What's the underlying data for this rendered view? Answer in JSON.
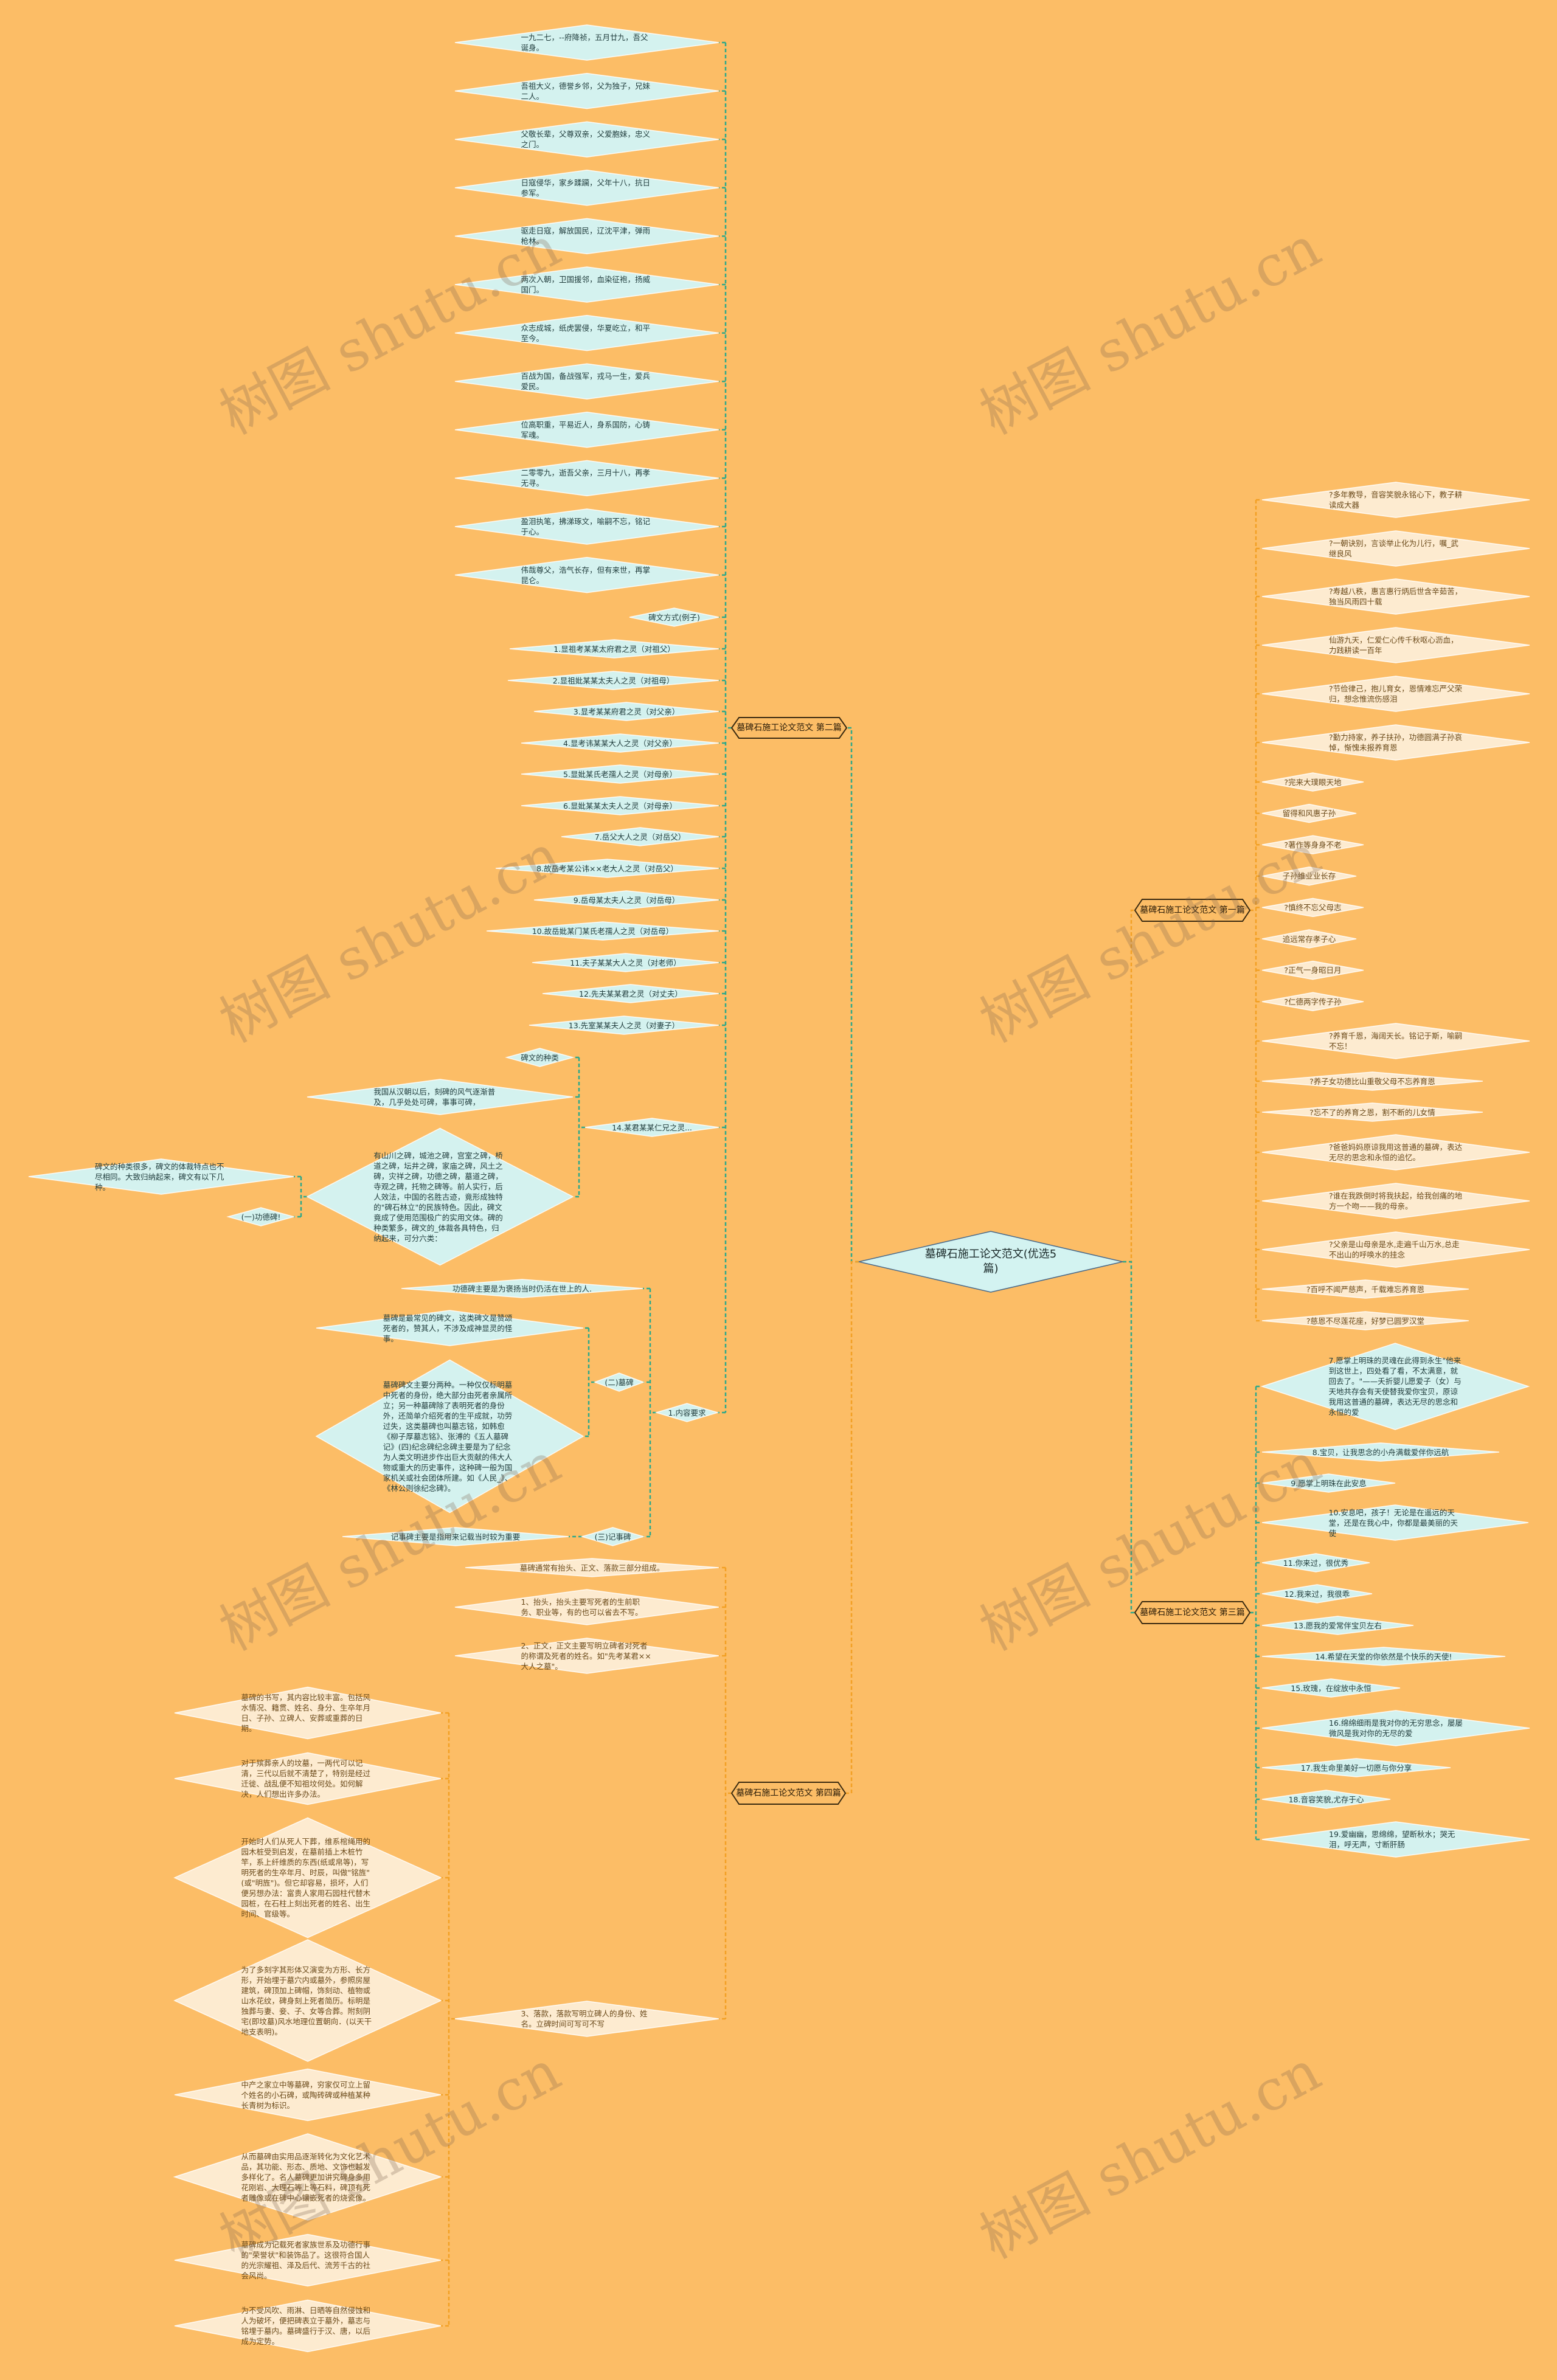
{
  "colors": {
    "background": "#fcbd66",
    "cyan_node": "#d4f2ef",
    "cream_node": "#fdebd0",
    "green_line": "#2fa88a",
    "orange_line": "#f2a024",
    "branch_border": "#3a2a10"
  },
  "watermark": "树图 shutu.cn",
  "center": {
    "text": "墓碑石施工论文范文(优选5篇)"
  },
  "branches": [
    {
      "label": "墓碑石施工论文范文 第一篇",
      "children": [
        {
          "text": "?多年教导，音容笑貌永铭心下，教子耕读成大器"
        },
        {
          "text": "?一朝诀别，言谈举止化为儿行，嘱_武继良风"
        },
        {
          "text": "?寿越八秩，惠言惠行炳后世含辛茹苦，独当风雨四十载"
        },
        {
          "text": "仙游九天，仁爱仁心传千秋呕心沥血，力践耕读一百年"
        },
        {
          "text": "?节俭律己，抱儿育女，恩情难忘严父荣归，想念惟流伤感泪"
        },
        {
          "text": "?勤力持家，养子扶孙，功德圆满子孙哀悼，惭愧未报养育恩"
        },
        {
          "text": "?完来大璞眼天地"
        },
        {
          "text": "留得和风惠子孙"
        },
        {
          "text": "?著作等身身不老"
        },
        {
          "text": "子孙维业业长存"
        },
        {
          "text": "?慎终不忘父母志"
        },
        {
          "text": "追远常存孝子心"
        },
        {
          "text": "?正气一身昭日月"
        },
        {
          "text": "?仁德两字传子孙"
        },
        {
          "text": "?养育千恩，海阔天长。铭记于斯，喻嗣不忘！"
        },
        {
          "text": "?养子女功德比山重敬父母不忘养育恩"
        },
        {
          "text": "?忘不了的养育之恩，割不断的儿女情"
        },
        {
          "text": "?爸爸妈妈原谅我用这普通的墓碑，表达无尽的思念和永恒的追忆。"
        },
        {
          "text": "?谁在我跌倒时将我扶起，给我创痛的地方一个吻——我的母亲。"
        },
        {
          "text": "?父亲是山母亲是水,走遍千山万水,总走不出山的呼唤水的挂念"
        },
        {
          "text": "?百呼不闻严慈声，千载难忘养育恩"
        },
        {
          "text": "?慈恩不尽莲花座，好梦已圆罗汉堂"
        }
      ]
    },
    {
      "label": "墓碑石施工论文范文 第二篇",
      "children": [
        {
          "text": "一九二七，--府降祯，五月廿九，吾父诞身。"
        },
        {
          "text": "吾祖大义，德誉乡邻，父为独子，兄妹二人。"
        },
        {
          "text": "父敬长辈，父尊双亲，父爱胞妹，忠义之门。"
        },
        {
          "text": "日寇侵华，家乡蹂躏，父年十八，抗日参军。"
        },
        {
          "text": "驱走日寇，解放国民，辽沈平津，弹雨枪林。"
        },
        {
          "text": "两次入朝，卫国援邻，血染征袍，扬威国门。"
        },
        {
          "text": "众志成城，纸虎罢侵，华夏屹立，和平至今。"
        },
        {
          "text": "百战为国，备战强军，戎马一生，爱兵爱民。"
        },
        {
          "text": "位高职重，平易近人，身系国防，心铸军魂。"
        },
        {
          "text": "二零零九，逝吾父亲，三月十八，再孝无寻。"
        },
        {
          "text": "盈泪执笔，拂涕琢文，喻嗣不忘，铭记于心。"
        },
        {
          "text": "伟哉尊父，浩气长存，但有来世，再掌昆仑。"
        },
        {
          "text": "碑文方式(例子)"
        },
        {
          "text": "1.显祖考某某太府君之灵（对祖父）"
        },
        {
          "text": "2.显祖妣某某太夫人之灵（对祖母）"
        },
        {
          "text": "3.显考某某府君之灵（对父亲）"
        },
        {
          "text": "4.显考讳某某大人之灵（对父亲）"
        },
        {
          "text": "5.显妣某氏老孺人之灵（对母亲）"
        },
        {
          "text": "6.显妣某某太夫人之灵（对母亲）"
        },
        {
          "text": "7.岳父大人之灵（对岳父）"
        },
        {
          "text": "8.故岳考某公讳××老大人之灵（对岳父）"
        },
        {
          "text": "9.岳母某太夫人之灵（对岳母）"
        },
        {
          "text": "10.故岳妣某门某氏老孺人之灵（对岳母）"
        },
        {
          "text": "11.夫子某某大人之灵（对老师）"
        },
        {
          "text": "12.先夫某某君之灵（对丈夫）"
        },
        {
          "text": "13.先室某某夫人之灵（对妻子）"
        },
        {
          "text": "14.某君某某仁兄之灵...",
          "children": [
            {
              "text": "碑文的种类"
            },
            {
              "text": "我国从汉朝以后，刻碑的风气逐渐普及，几乎处处可碑，事事可碑，"
            },
            {
              "text": "有山川之碑，城池之碑，宫室之碑，桥道之碑，坛井之碑，家庙之碑，风土之碑，灾祥之碑，功德之碑，墓道之碑，寺观之碑，托物之碑等。前人实行，后人效法，中国的名胜古迹，竟形成独特的\"碑石林立\"的民族特色。因此，碑文竟成了使用范围极广的实用文体。碑的种类繁多，碑文的_体裁各具特色，归纳起来，可分六类：",
              "children": [
                {
                  "text": "碑文的种类很多，碑文的体裁特点也不尽相同。大致归纳起来，碑文有以下几种。"
                },
                {
                  "text": "(一)功德碑!"
                }
              ]
            }
          ]
        },
        {
          "text": "1.内容要求",
          "children": [
            {
              "text": "功德碑主要是为褒扬当时仍活在世上的人."
            },
            {
              "text": "(二)墓碑",
              "children": [
                {
                  "text": "墓碑是最常见的碑文，这类碑文是赞颂死者的，赞其人，不涉及成神显灵的怪事。"
                },
                {
                  "text": "墓碑碑文主要分两种。一种仅仅标明墓中死者的身份，绝大部分由死者亲属所立；另一种墓碑除了表明死者的身份外，还简单介绍死者的生平成就，功劳过失，这类墓碑也叫墓志铭，如韩愈《柳子厚墓志铭》、张溥的《五人墓碑记》(四)纪念碑纪念碑主要是为了纪念为人类文明进步作出巨大贡献的伟大人物或重大的历史事件，这种碑一般为国家机关或社会团体所建。如《人民_》、《林公则徐纪念碑》。"
                }
              ]
            },
            {
              "text": "(三)记事碑",
              "children": [
                {
                  "text": "记事碑主要是指用来记载当时较为重要"
                }
              ]
            }
          ]
        }
      ]
    },
    {
      "label": "墓碑石施工论文范文 第三篇",
      "children": [
        {
          "text": "7.愿掌上明珠的灵魂在此得到永生\"他来到这世上，四处看了看，不太满意，就回去了。\"——夭折婴儿愿爱子（女）与天地共存会有天使替我爱你宝贝，原谅我用这普通的墓碑，表达无尽的思念和永恒的爱"
        },
        {
          "text": "8.宝贝，让我思念的小舟满载爱伴你远航"
        },
        {
          "text": "9.愿掌上明珠在此安息"
        },
        {
          "text": "10.安息吧，孩子！无论是在遥远的天堂，还是在我心中，你都是最美丽的天使"
        },
        {
          "text": "11.你来过，很优秀"
        },
        {
          "text": "12.我来过，我很乖"
        },
        {
          "text": "13.愿我的爱常伴宝贝左右"
        },
        {
          "text": "14.希望在天堂的你依然是个快乐的天使!"
        },
        {
          "text": "15.玫瑰，在绽放中永恒"
        },
        {
          "text": "16.绵绵细雨是我对你的无穷思念，屡屡微风是我对你的无尽的爱"
        },
        {
          "text": "17.我生命里美好一切愿与你分享"
        },
        {
          "text": "18.音容笑貌,尤存于心"
        },
        {
          "text": "19.爱幽幽，思绵绵，望断秋水；哭无泪，呼无声，寸断肝肠"
        }
      ]
    },
    {
      "label": "墓碑石施工论文范文 第四篇",
      "children": [
        {
          "text": "墓碑通常有抬头、正文、落款三部分组成。"
        },
        {
          "text": "1、抬头，抬头主要写死者的生前职务、职业等，有的也可以省去不写。"
        },
        {
          "text": "2、正文，正文主要写明立碑者对死者的称谓及死者的姓名。如\"先考某君××大人之墓\"。"
        },
        {
          "text": "3、落款，落款写明立碑人的身份、姓名。立碑时间可写可不写",
          "children": [
            {
              "text": "墓碑的书写，其内容比较丰富。包括风水情况、籍贯、姓名、身分、生卒年月日、子孙、立碑人、安葬或重葬的日期。"
            },
            {
              "text": "对于殡葬亲人的坟墓，一两代可以记清，三代以后就不清楚了，特别是经过迁徙、战乱便不知祖坟何处。如何解决，人们想出许多办法。"
            },
            {
              "text": "开始时人们从死人下葬，维系棺绳用的园木桩受到启发，在墓前插上木桩竹竿，系上纤维质的东西(纸或帛等)，写明死者的生卒年月、时辰，叫做\"铭旌\"(或\"明旌\")。但它却容易，损坏，人们便另想办法：富贵人家用石园柱代替木园桩，在石柱上刻出死者的姓名、出生时间、官级等。"
            },
            {
              "text": "为了多刻字其形体又演变为方形、长方形，开始埋于墓穴内或墓外，参照房屋建筑，碑顶加上碑帽，饰刻动、植物或山水花纹，碑身刻上死者简历。标明是独葬与妻、妾、子、女等合葬。附刻阴宅(即坟墓)风水地理位置朝向．(以天干地支表明)。"
            },
            {
              "text": "中产之家立中等墓碑，穷家仅可立上留个姓名的小石碑，或陶砖碑或种植某种长青树为标识。"
            },
            {
              "text": "从而墓碑由实用品逐渐转化为文化艺术品，其功能、形态、质地、文饰也越发多样化了。名人墓碑更加讲究碑身多用花刚岩、大理石等上等石料，碑顶有死者雕像或在碑中心镶嵌死者的烧瓷像。"
            },
            {
              "text": "墓碑成为记载死者家族世系及功德行事的\"荣誉状\"和装饰品了。这很符合国人的光宗耀祖、泽及后代、流芳千古的社会风尚。"
            },
            {
              "text": "为不受风吹、雨淋、日晒等自然侵蚀和人为破坏，便把碑表立于墓外，墓志与铭埋于墓内。墓碑盛行于汉、唐，以后成为定势。"
            }
          ]
        }
      ]
    }
  ]
}
